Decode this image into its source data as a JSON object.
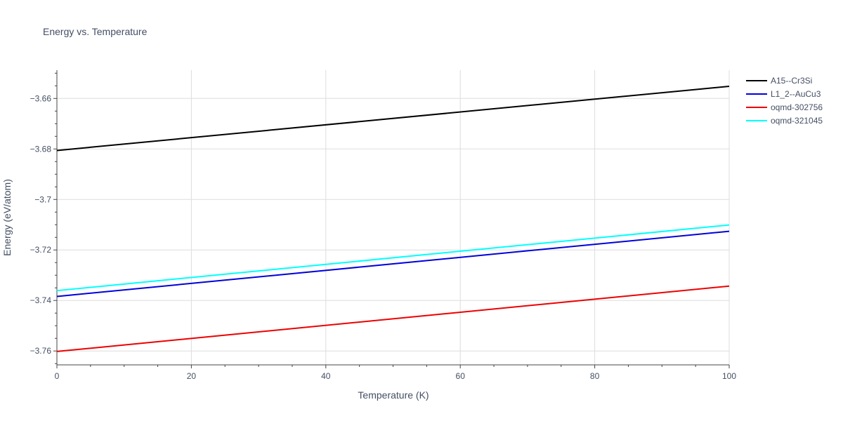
{
  "chart_data": {
    "type": "line",
    "title": "Energy vs. Temperature",
    "xlabel": "Temperature (K)",
    "ylabel": "Energy (eV/atom)",
    "xlim": [
      0,
      100
    ],
    "ylim": [
      -3.7655,
      -3.6488
    ],
    "x_ticks": [
      0,
      20,
      40,
      60,
      80,
      100
    ],
    "x_tick_labels": [
      "0",
      "20",
      "40",
      "60",
      "80",
      "100"
    ],
    "y_ticks": [
      -3.76,
      -3.74,
      -3.72,
      -3.7,
      -3.68,
      -3.66
    ],
    "y_tick_labels": [
      "−3.76",
      "−3.74",
      "−3.72",
      "−3.7",
      "−3.68",
      "−3.66"
    ],
    "grid": true,
    "legend_position": "top-right",
    "series": [
      {
        "name": "A15--Cr3Si",
        "color": "#000000",
        "x": [
          0,
          100
        ],
        "y": [
          -3.6806,
          -3.6552
        ]
      },
      {
        "name": "L1_2--AuCu3",
        "color": "#0000dd",
        "x": [
          0,
          100
        ],
        "y": [
          -3.7384,
          -3.7126
        ]
      },
      {
        "name": "oqmd-302756",
        "color": "#ee0000",
        "x": [
          0,
          100
        ],
        "y": [
          -3.7602,
          -3.7343
        ]
      },
      {
        "name": "oqmd-321045",
        "color": "#00ffff",
        "x": [
          0,
          100
        ],
        "y": [
          -3.7361,
          -3.7101
        ]
      }
    ]
  }
}
